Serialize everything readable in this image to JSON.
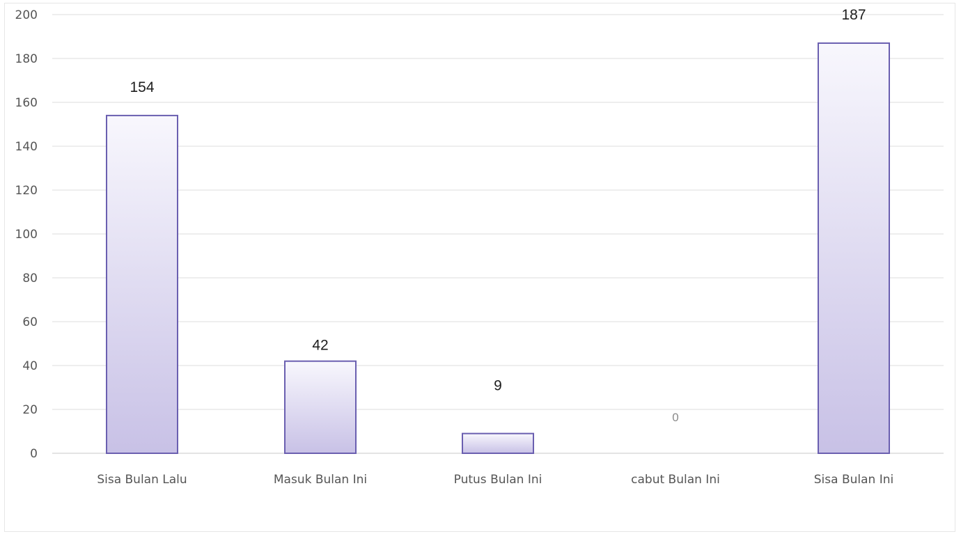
{
  "chart_data": {
    "type": "bar",
    "categories": [
      "Sisa Bulan Lalu",
      "Masuk Bulan Ini",
      "Putus Bulan Ini",
      "cabut Bulan Ini",
      "Sisa Bulan Ini"
    ],
    "values": [
      154,
      42,
      9,
      0,
      187
    ],
    "data_labels": [
      "154",
      "42",
      "9",
      "0",
      "187"
    ],
    "y_ticks": [
      "0",
      "20",
      "40",
      "60",
      "80",
      "100",
      "120",
      "140",
      "160",
      "180",
      "200"
    ],
    "ylim": [
      0,
      200
    ],
    "grid": true,
    "colors": {
      "bar_top": "#f8f7fd",
      "bar_bottom": "#c8c1e6",
      "bar_border": "#6a5fb0",
      "grid": "#dcdcdc"
    }
  }
}
